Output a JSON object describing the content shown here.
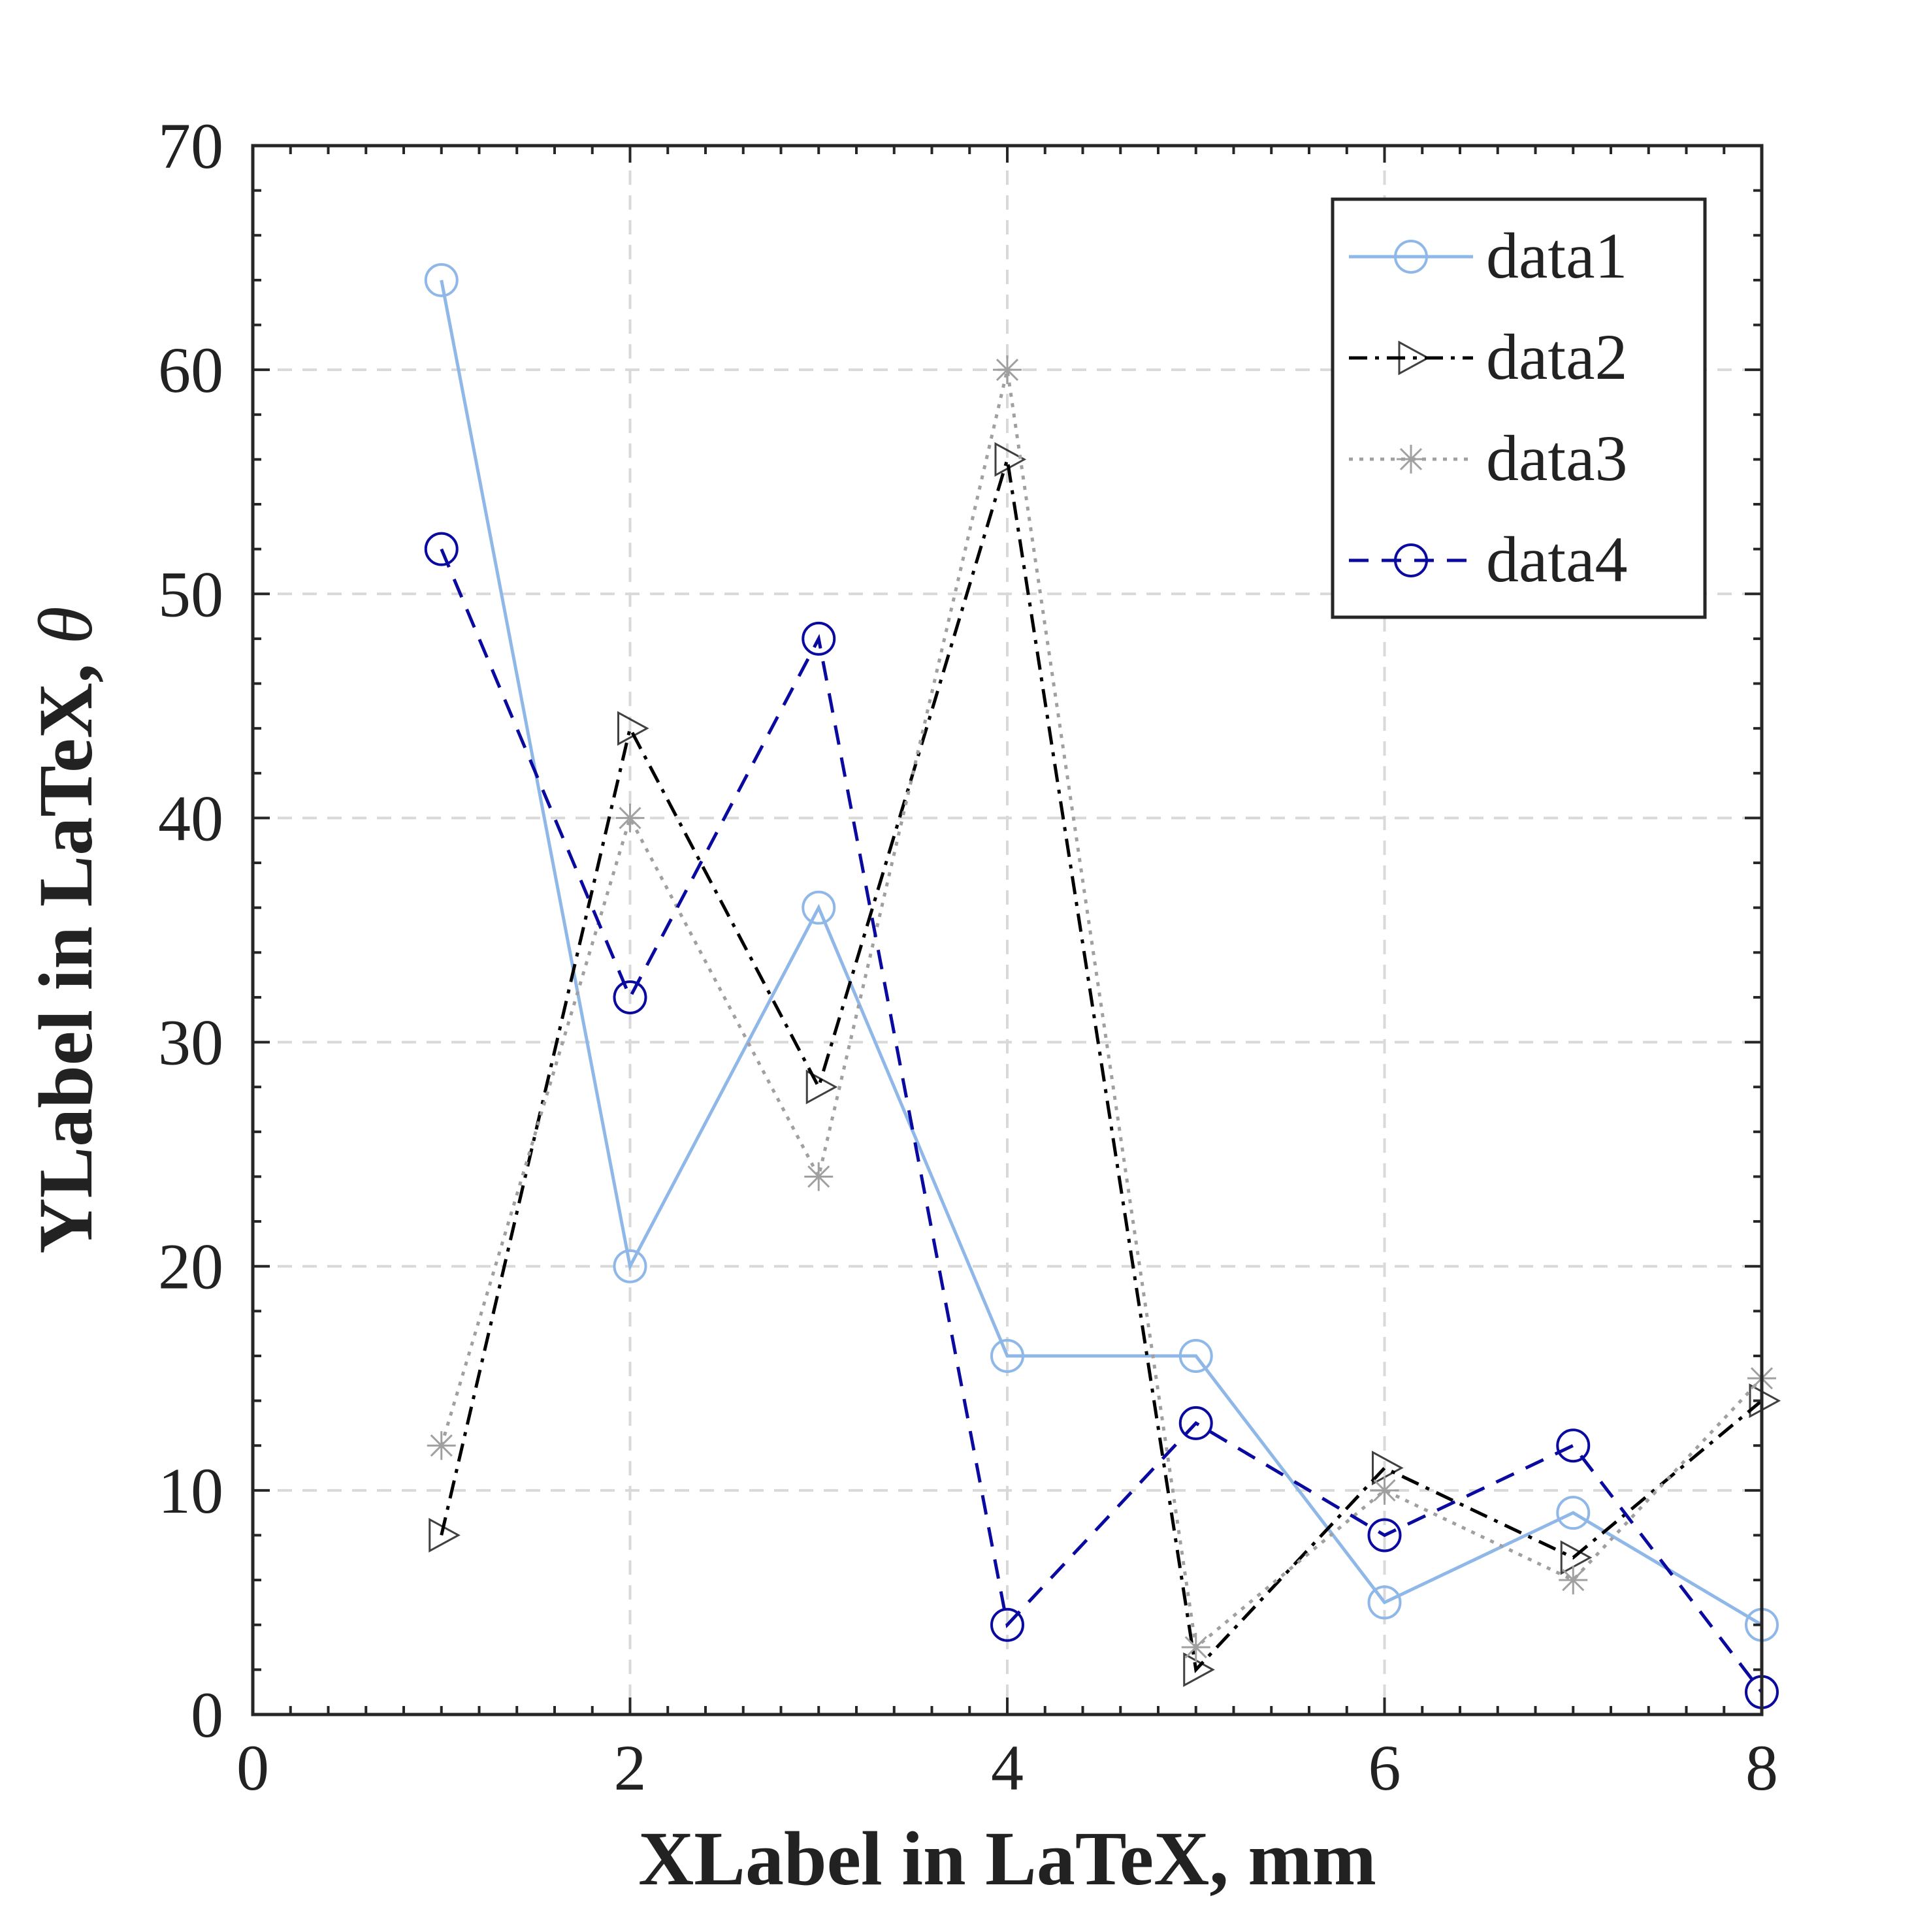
{
  "chart_data": {
    "type": "line",
    "xlabel": "XLabel in LaTeX, mm",
    "ylabel": "YLabel in LaTeX, ",
    "ylabel_symbol": "θ",
    "xlim": [
      0,
      8
    ],
    "ylim": [
      0,
      70
    ],
    "xticks": [
      0,
      2,
      4,
      6,
      8
    ],
    "yticks": [
      0,
      10,
      20,
      30,
      40,
      50,
      60,
      70
    ],
    "grid": true,
    "legend_position": "top-right",
    "x": [
      1,
      2,
      3,
      4,
      5,
      6,
      7,
      8
    ],
    "series": [
      {
        "name": "data1",
        "values": [
          64,
          20,
          36,
          16,
          16,
          5,
          9,
          4
        ],
        "color": "#8fb8e8",
        "dash": "solid",
        "marker": "circle"
      },
      {
        "name": "data2",
        "values": [
          8,
          44,
          28,
          56,
          2,
          11,
          7,
          14
        ],
        "color": "#000000",
        "dash": "dashdot",
        "marker": "triangle-right"
      },
      {
        "name": "data3",
        "values": [
          12,
          40,
          24,
          60,
          3,
          10,
          6,
          15
        ],
        "color": "#a0a0a0",
        "dash": "dotted",
        "marker": "asterisk"
      },
      {
        "name": "data4",
        "values": [
          52,
          32,
          48,
          4,
          13,
          8,
          12,
          1
        ],
        "color": "#0a0aa0",
        "dash": "dashed",
        "marker": "circle"
      }
    ]
  }
}
